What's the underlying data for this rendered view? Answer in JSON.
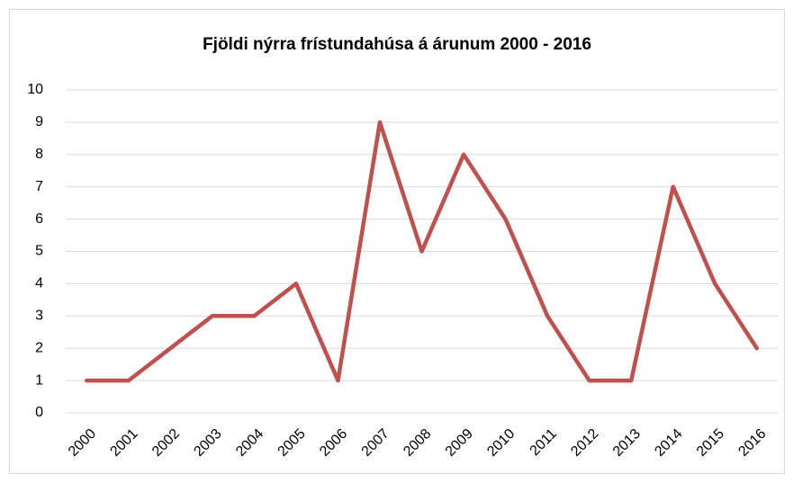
{
  "chart_data": {
    "type": "line",
    "title": "Fjöldi nýrra frístundahúsa á árunum 2000 - 2016",
    "categories": [
      "2000",
      "2001",
      "2002",
      "2003",
      "2004",
      "2005",
      "2006",
      "2007",
      "2008",
      "2009",
      "2010",
      "2011",
      "2012",
      "2013",
      "2014",
      "2015",
      "2016"
    ],
    "values": [
      1,
      1,
      2,
      3,
      3,
      4,
      1,
      9,
      5,
      8,
      6,
      3,
      1,
      1,
      7,
      4,
      2
    ],
    "color": "#c0504d",
    "ylim": [
      0,
      10
    ],
    "yticks": [
      0,
      1,
      2,
      3,
      4,
      5,
      6,
      7,
      8,
      9,
      10
    ],
    "grid": true
  }
}
